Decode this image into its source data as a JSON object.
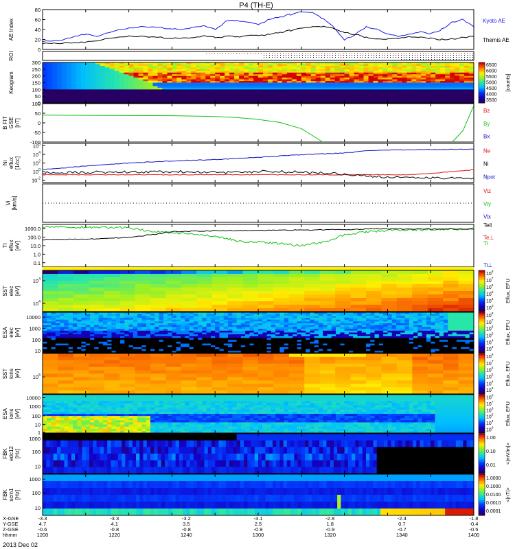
{
  "title": "P4 (TH-E)",
  "date_label": "2013 Dec 02",
  "colors": {
    "kyoto": "#1a1ae6",
    "themis": "#000000",
    "red": "#e01010",
    "green": "#10c010",
    "blue": "#1010c0",
    "black": "#000000"
  },
  "chart_data": [
    {
      "id": "ae",
      "type": "line",
      "ylabel": "AE Index",
      "ylim": [
        0,
        80
      ],
      "yticks": [
        "0",
        "20",
        "40",
        "60",
        "80"
      ],
      "series": [
        {
          "name": "Kyoto AE",
          "x": [
            1200,
            1205,
            1210,
            1215,
            1220,
            1225,
            1230,
            1235,
            1240,
            1245,
            1250,
            1255,
            1260,
            1265,
            1270,
            1275,
            1280,
            1285,
            1290,
            1295,
            1300,
            1305,
            1310,
            1315,
            1320,
            1325,
            1330,
            1335,
            1340,
            1345,
            1350,
            1355,
            1360,
            1365,
            1370,
            1375,
            1380,
            1385,
            1390,
            1395,
            1400
          ],
          "values": [
            16,
            17,
            20,
            27,
            31,
            27,
            33,
            40,
            43,
            45,
            45,
            44,
            42,
            39,
            45,
            47,
            40,
            56,
            58,
            54,
            50,
            60,
            65,
            70,
            75,
            74,
            62,
            45,
            20,
            30,
            45,
            42,
            30,
            26,
            30,
            35,
            31,
            40,
            55,
            60,
            45
          ]
        },
        {
          "name": "Themis AE",
          "x": [
            1200,
            1205,
            1210,
            1215,
            1220,
            1225,
            1230,
            1235,
            1240,
            1245,
            1250,
            1255,
            1260,
            1265,
            1270,
            1275,
            1280,
            1285,
            1290,
            1295,
            1300,
            1305,
            1310,
            1315,
            1320,
            1325,
            1330,
            1335,
            1340,
            1345,
            1350,
            1355,
            1360,
            1365,
            1370,
            1375,
            1380,
            1385,
            1390,
            1395,
            1400
          ],
          "values": [
            12,
            12,
            13,
            14,
            15,
            18,
            22,
            25,
            27,
            26,
            25,
            24,
            23,
            22,
            24,
            27,
            24,
            26,
            25,
            27,
            28,
            30,
            34,
            38,
            42,
            45,
            46,
            42,
            35,
            30,
            24,
            22,
            20,
            22,
            25,
            24,
            22,
            20,
            21,
            24,
            26
          ]
        }
      ]
    },
    {
      "id": "roi",
      "type": "table",
      "ylabel": "ROI"
    },
    {
      "id": "keogram",
      "type": "heatmap",
      "ylabel": "Keogram",
      "ylim": [
        0,
        300
      ],
      "yticks": [
        "0",
        "50",
        "100",
        "150",
        "200",
        "250",
        "300"
      ],
      "colorbar": {
        "label": "[counts]",
        "range": [
          3500,
          6500
        ],
        "ticks": [
          "6500",
          "6000",
          "5500",
          "5000",
          "4500",
          "4000",
          "3500"
        ]
      }
    },
    {
      "id": "bfit",
      "type": "line",
      "ylabel": "B FIT",
      "ylabel2": "GSE",
      "units": "[nT]",
      "ylim": [
        -100,
        100
      ],
      "yticks": [
        "100",
        "50",
        "0",
        "-50",
        "-100"
      ],
      "series": [
        {
          "name": "Bz",
          "x": [],
          "values": []
        },
        {
          "name": "By",
          "x": [
            1200,
            1220,
            1240,
            1260,
            1280,
            1290,
            1300,
            1310,
            1320,
            1330,
            1390,
            1395,
            1400
          ],
          "values": [
            40,
            39,
            38,
            37,
            33,
            28,
            18,
            2,
            -30,
            -100,
            -100,
            -40,
            90
          ]
        },
        {
          "name": "Bx",
          "x": [],
          "values": []
        }
      ]
    },
    {
      "id": "density",
      "type": "line",
      "ylabel": "Ni",
      "ylabel2": "eflux",
      "units": "[1/cc]",
      "yscale": "log",
      "yticks": [
        "10^6",
        "10^4",
        "10^2",
        "10^0",
        "10^-2"
      ],
      "series": [
        {
          "name": "Ne",
          "x": [
            1200,
            1250,
            1300,
            1340,
            1370,
            1390,
            1400
          ],
          "values": [
            0.2,
            0.2,
            0.2,
            0.2,
            0.2,
            1.0,
            3.0
          ]
        },
        {
          "name": "Ni",
          "x": [
            1200,
            1220,
            1240,
            1260,
            1280,
            1300,
            1320,
            1340,
            1350,
            1360,
            1400
          ],
          "values": [
            3,
            20,
            100,
            300,
            600,
            2000,
            8000,
            20000,
            60000,
            100000,
            150000
          ]
        },
        {
          "name": "Npot",
          "x": [
            1200,
            1230,
            1260,
            1290,
            1300,
            1320,
            1340,
            1360,
            1380,
            1400
          ],
          "values": [
            0.5,
            0.8,
            1.0,
            0.6,
            1.2,
            0.8,
            0.3,
            0.05,
            0.04,
            0.04
          ]
        }
      ]
    },
    {
      "id": "velocity",
      "type": "line",
      "ylabel": "Vi",
      "units": "[km/s]",
      "series": [
        {
          "name": "Viz",
          "x": [],
          "values": []
        },
        {
          "name": "Viy",
          "x": [],
          "values": []
        },
        {
          "name": "Vix",
          "x": [],
          "values": []
        }
      ]
    },
    {
      "id": "temperature",
      "type": "line",
      "ylabel": "TI",
      "ylabel2": "eflux",
      "units": "[eV]",
      "yscale": "log",
      "yticks": [
        "1000.0",
        "100.0",
        "10.0",
        "1.0",
        "0.1"
      ],
      "series": [
        {
          "name": "Tell",
          "x": [
            1200,
            1220,
            1240,
            1250,
            1260,
            1280,
            1300,
            1320,
            1340,
            1350,
            1400
          ],
          "values": [
            80,
            90,
            150,
            300,
            700,
            900,
            1000,
            1100,
            1200,
            1500,
            1400
          ]
        },
        {
          "name": "Te⊥",
          "x": [],
          "values": []
        },
        {
          "name": "Ti",
          "x": [
            1200,
            1220,
            1240,
            1250,
            1260,
            1270,
            1280,
            1290,
            1300,
            1310,
            1320,
            1330,
            1340,
            1350,
            1360,
            1400
          ],
          "values": [
            2500,
            2400,
            2000,
            800,
            500,
            400,
            200,
            60,
            40,
            30,
            15,
            40,
            300,
            700,
            1000,
            1500
          ]
        },
        {
          "name": "Ti⊥",
          "x": [],
          "values": []
        }
      ]
    },
    {
      "id": "sst_e",
      "type": "heatmap",
      "ylabel": "SST",
      "ylabel2": "elec",
      "units": "[eV]",
      "yticks": [
        "10^4",
        "10^4"
      ],
      "colorbar": {
        "label": "Eflux, EFU",
        "ticks": [
          "10^8",
          "10^7",
          "10^6",
          "10^5",
          "10^4",
          "10^3"
        ]
      }
    },
    {
      "id": "esa_e",
      "type": "heatmap",
      "ylabel": "ESA",
      "ylabel2": "elec",
      "units": "[eV]",
      "yticks": [
        "10000",
        "1000",
        "100",
        "10"
      ],
      "colorbar": {
        "label": "Eflux, EFU",
        "ticks": [
          "10^8",
          "10^7",
          "10^6",
          "10^5",
          "10^4",
          "10^3"
        ]
      }
    },
    {
      "id": "sst_i",
      "type": "heatmap",
      "ylabel": "SST",
      "ylabel2": "ions",
      "units": "[eV]",
      "yticks": [
        "10^5"
      ],
      "colorbar": {
        "label": "Eflux, EFU",
        "ticks": [
          "10^8",
          "10^7",
          "10^6",
          "10^5",
          "10^4",
          "10^3"
        ]
      }
    },
    {
      "id": "esa_i",
      "type": "heatmap",
      "ylabel": "ESA",
      "ylabel2": "ions",
      "units": "[eV]",
      "yticks": [
        "10000",
        "1000",
        "100",
        "10",
        "1"
      ],
      "colorbar": {
        "label": "Eflux, EFU",
        "ticks": [
          "10^8",
          "10^7",
          "10^6",
          "10^5",
          "10^4",
          "10^3"
        ]
      }
    },
    {
      "id": "fbk_e",
      "type": "heatmap",
      "ylabel": "FBK",
      "ylabel2": "edc12",
      "units": "[Hz]",
      "yticks": [
        "1000",
        "100",
        "10"
      ],
      "colorbar": {
        "label": "<|mV/m|>",
        "ticks": [
          "1.00",
          "0.10",
          "0.01"
        ]
      }
    },
    {
      "id": "fbk_b",
      "type": "heatmap",
      "ylabel": "FBK",
      "ylabel2": "scm1",
      "units": "[Hz]",
      "yticks": [
        "1000",
        "100",
        "10"
      ],
      "colorbar": {
        "label": "<|nT|>",
        "ticks": [
          "1.0000",
          "0.1000",
          "0.0100",
          "0.0010",
          "0.0001"
        ]
      }
    }
  ],
  "ephemeris": {
    "rows": [
      {
        "label": "X-GSE",
        "values": [
          "-3.3",
          "-3.3",
          "-3.2",
          "-3.1",
          "-2.8",
          "-2.4",
          "-1.8"
        ]
      },
      {
        "label": "Y-GSE",
        "values": [
          "4.7",
          "4.1",
          "3.5",
          "2.5",
          "1.8",
          "0.7",
          "-0.4"
        ]
      },
      {
        "label": "Z-GSE",
        "values": [
          "-0.6",
          "-0.8",
          "-0.8",
          "-0.9",
          "-0.9",
          "-0.7",
          "-0.5"
        ]
      },
      {
        "label": "hhmm",
        "values": [
          "1200",
          "1220",
          "1240",
          "1300",
          "1320",
          "1340",
          "1400"
        ]
      }
    ]
  }
}
